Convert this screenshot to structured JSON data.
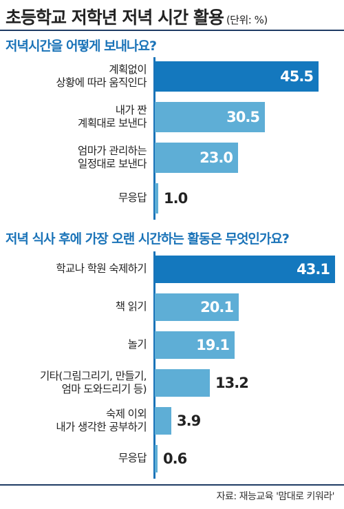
{
  "title": "초등학교 저학년 저녁 시간 활용",
  "unit": "(단위: %)",
  "source": "자료: 재능교육 '맘대로 키워라'",
  "colors": {
    "highlight": "#1478be",
    "normal": "#5eaed6",
    "section": "#1a73b8"
  },
  "chart_data": [
    {
      "type": "bar",
      "title": "저녁시간을 어떻게 보내나요?",
      "categories": [
        "계획없이\n상황에 따라 움직인다",
        "내가 짠\n계획대로 보낸다",
        "엄마가 관리하는\n일정대로 보낸다",
        "무응답"
      ],
      "values": [
        45.5,
        30.5,
        23.0,
        1.0
      ],
      "value_labels": [
        "45.5",
        "30.5",
        "23.0",
        "1.0"
      ],
      "highlight_index": 0,
      "xlim": [
        0,
        50
      ]
    },
    {
      "type": "bar",
      "title": "저녁 식사 후에 가장 오랜 시간하는 활동은 무엇인가요?",
      "categories": [
        "학교나 학원 숙제하기",
        "책 읽기",
        "놀기",
        "기타(그림그리기, 만들기,\n엄마 도와드리기 등)",
        "숙제 이외\n내가 생각한 공부하기",
        "무응답"
      ],
      "values": [
        43.1,
        20.1,
        19.1,
        13.2,
        3.9,
        0.6
      ],
      "value_labels": [
        "43.1",
        "20.1",
        "19.1",
        "13.2",
        "3.9",
        "0.6"
      ],
      "highlight_index": 0,
      "xlim": [
        0,
        43.1
      ]
    }
  ]
}
